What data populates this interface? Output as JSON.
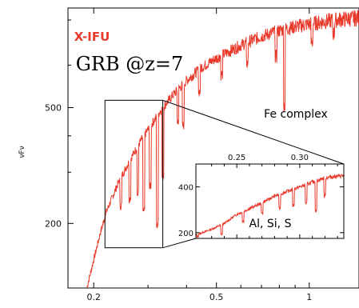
{
  "chart_data": {
    "type": "line",
    "title": "",
    "xlabel": "",
    "ylabel": "νFν",
    "x_scale": "log",
    "y_scale": "log",
    "xlim": [
      0.165,
      1.45
    ],
    "ylim": [
      120,
      1100
    ],
    "x_ticks": [
      0.2,
      0.5,
      1
    ],
    "x_tick_labels": [
      "0.2",
      "0.5",
      "1"
    ],
    "y_ticks": [
      200,
      500
    ],
    "y_tick_labels": [
      "200",
      "500"
    ],
    "grid": false,
    "series": [
      {
        "name": "",
        "color": "#e8392a",
        "x": [
          0.19,
          0.2,
          0.21,
          0.22,
          0.24,
          0.26,
          0.28,
          0.3,
          0.33,
          0.36,
          0.4,
          0.45,
          0.5,
          0.55,
          0.6,
          0.7,
          0.8,
          0.9,
          1.0,
          1.2,
          1.45
        ],
        "y": [
          120,
          150,
          185,
          220,
          275,
          325,
          375,
          420,
          490,
          550,
          620,
          690,
          740,
          780,
          820,
          880,
          920,
          950,
          970,
          1000,
          1020
        ],
        "absorption_lines": [
          {
            "x": 0.245,
            "depth_ratio": 0.8
          },
          {
            "x": 0.262,
            "depth_ratio": 0.74
          },
          {
            "x": 0.278,
            "depth_ratio": 0.68
          },
          {
            "x": 0.291,
            "depth_ratio": 0.55
          },
          {
            "x": 0.305,
            "depth_ratio": 0.62
          },
          {
            "x": 0.322,
            "depth_ratio": 0.42
          },
          {
            "x": 0.335,
            "depth_ratio": 0.58
          },
          {
            "x": 0.375,
            "depth_ratio": 0.78
          },
          {
            "x": 0.39,
            "depth_ratio": 0.72
          },
          {
            "x": 0.44,
            "depth_ratio": 0.84
          },
          {
            "x": 0.52,
            "depth_ratio": 0.86
          },
          {
            "x": 0.63,
            "depth_ratio": 0.85
          },
          {
            "x": 0.78,
            "depth_ratio": 0.82
          },
          {
            "x": 0.83,
            "depth_ratio": 0.55
          },
          {
            "x": 1.02,
            "depth_ratio": 0.86
          },
          {
            "x": 1.2,
            "depth_ratio": 0.9
          }
        ]
      }
    ],
    "annotations": {
      "instrument": "X-IFU",
      "instrument_color": "#e8392a",
      "grb_label": "GRB @z=7",
      "fe_label": "Fe complex",
      "inset_label": "Al, Si, S"
    },
    "zoom_box": {
      "x_range": [
        0.2175,
        0.335
      ],
      "y_range": [
        165,
        530
      ]
    },
    "inset": {
      "xlim": [
        0.2175,
        0.335
      ],
      "ylim": [
        175,
        500
      ],
      "x_ticks": [
        0.25,
        0.3
      ],
      "x_tick_labels": [
        "0.25",
        "0.30"
      ],
      "y_ticks": [
        200,
        400
      ],
      "y_tick_labels": [
        "200",
        "400"
      ],
      "x": [
        0.2175,
        0.23,
        0.24,
        0.25,
        0.26,
        0.27,
        0.28,
        0.29,
        0.3,
        0.31,
        0.32,
        0.335
      ],
      "y": [
        190,
        215,
        240,
        280,
        305,
        330,
        360,
        380,
        400,
        420,
        440,
        450
      ],
      "absorption_lines": [
        {
          "x": 0.219,
          "depth_ratio": 0.95
        },
        {
          "x": 0.238,
          "depth_ratio": 0.82
        },
        {
          "x": 0.255,
          "depth_ratio": 0.85
        },
        {
          "x": 0.27,
          "depth_ratio": 0.86
        },
        {
          "x": 0.284,
          "depth_ratio": 0.83
        },
        {
          "x": 0.295,
          "depth_ratio": 0.82
        },
        {
          "x": 0.305,
          "depth_ratio": 0.8
        },
        {
          "x": 0.313,
          "depth_ratio": 0.7
        },
        {
          "x": 0.32,
          "depth_ratio": 0.82
        }
      ]
    }
  }
}
